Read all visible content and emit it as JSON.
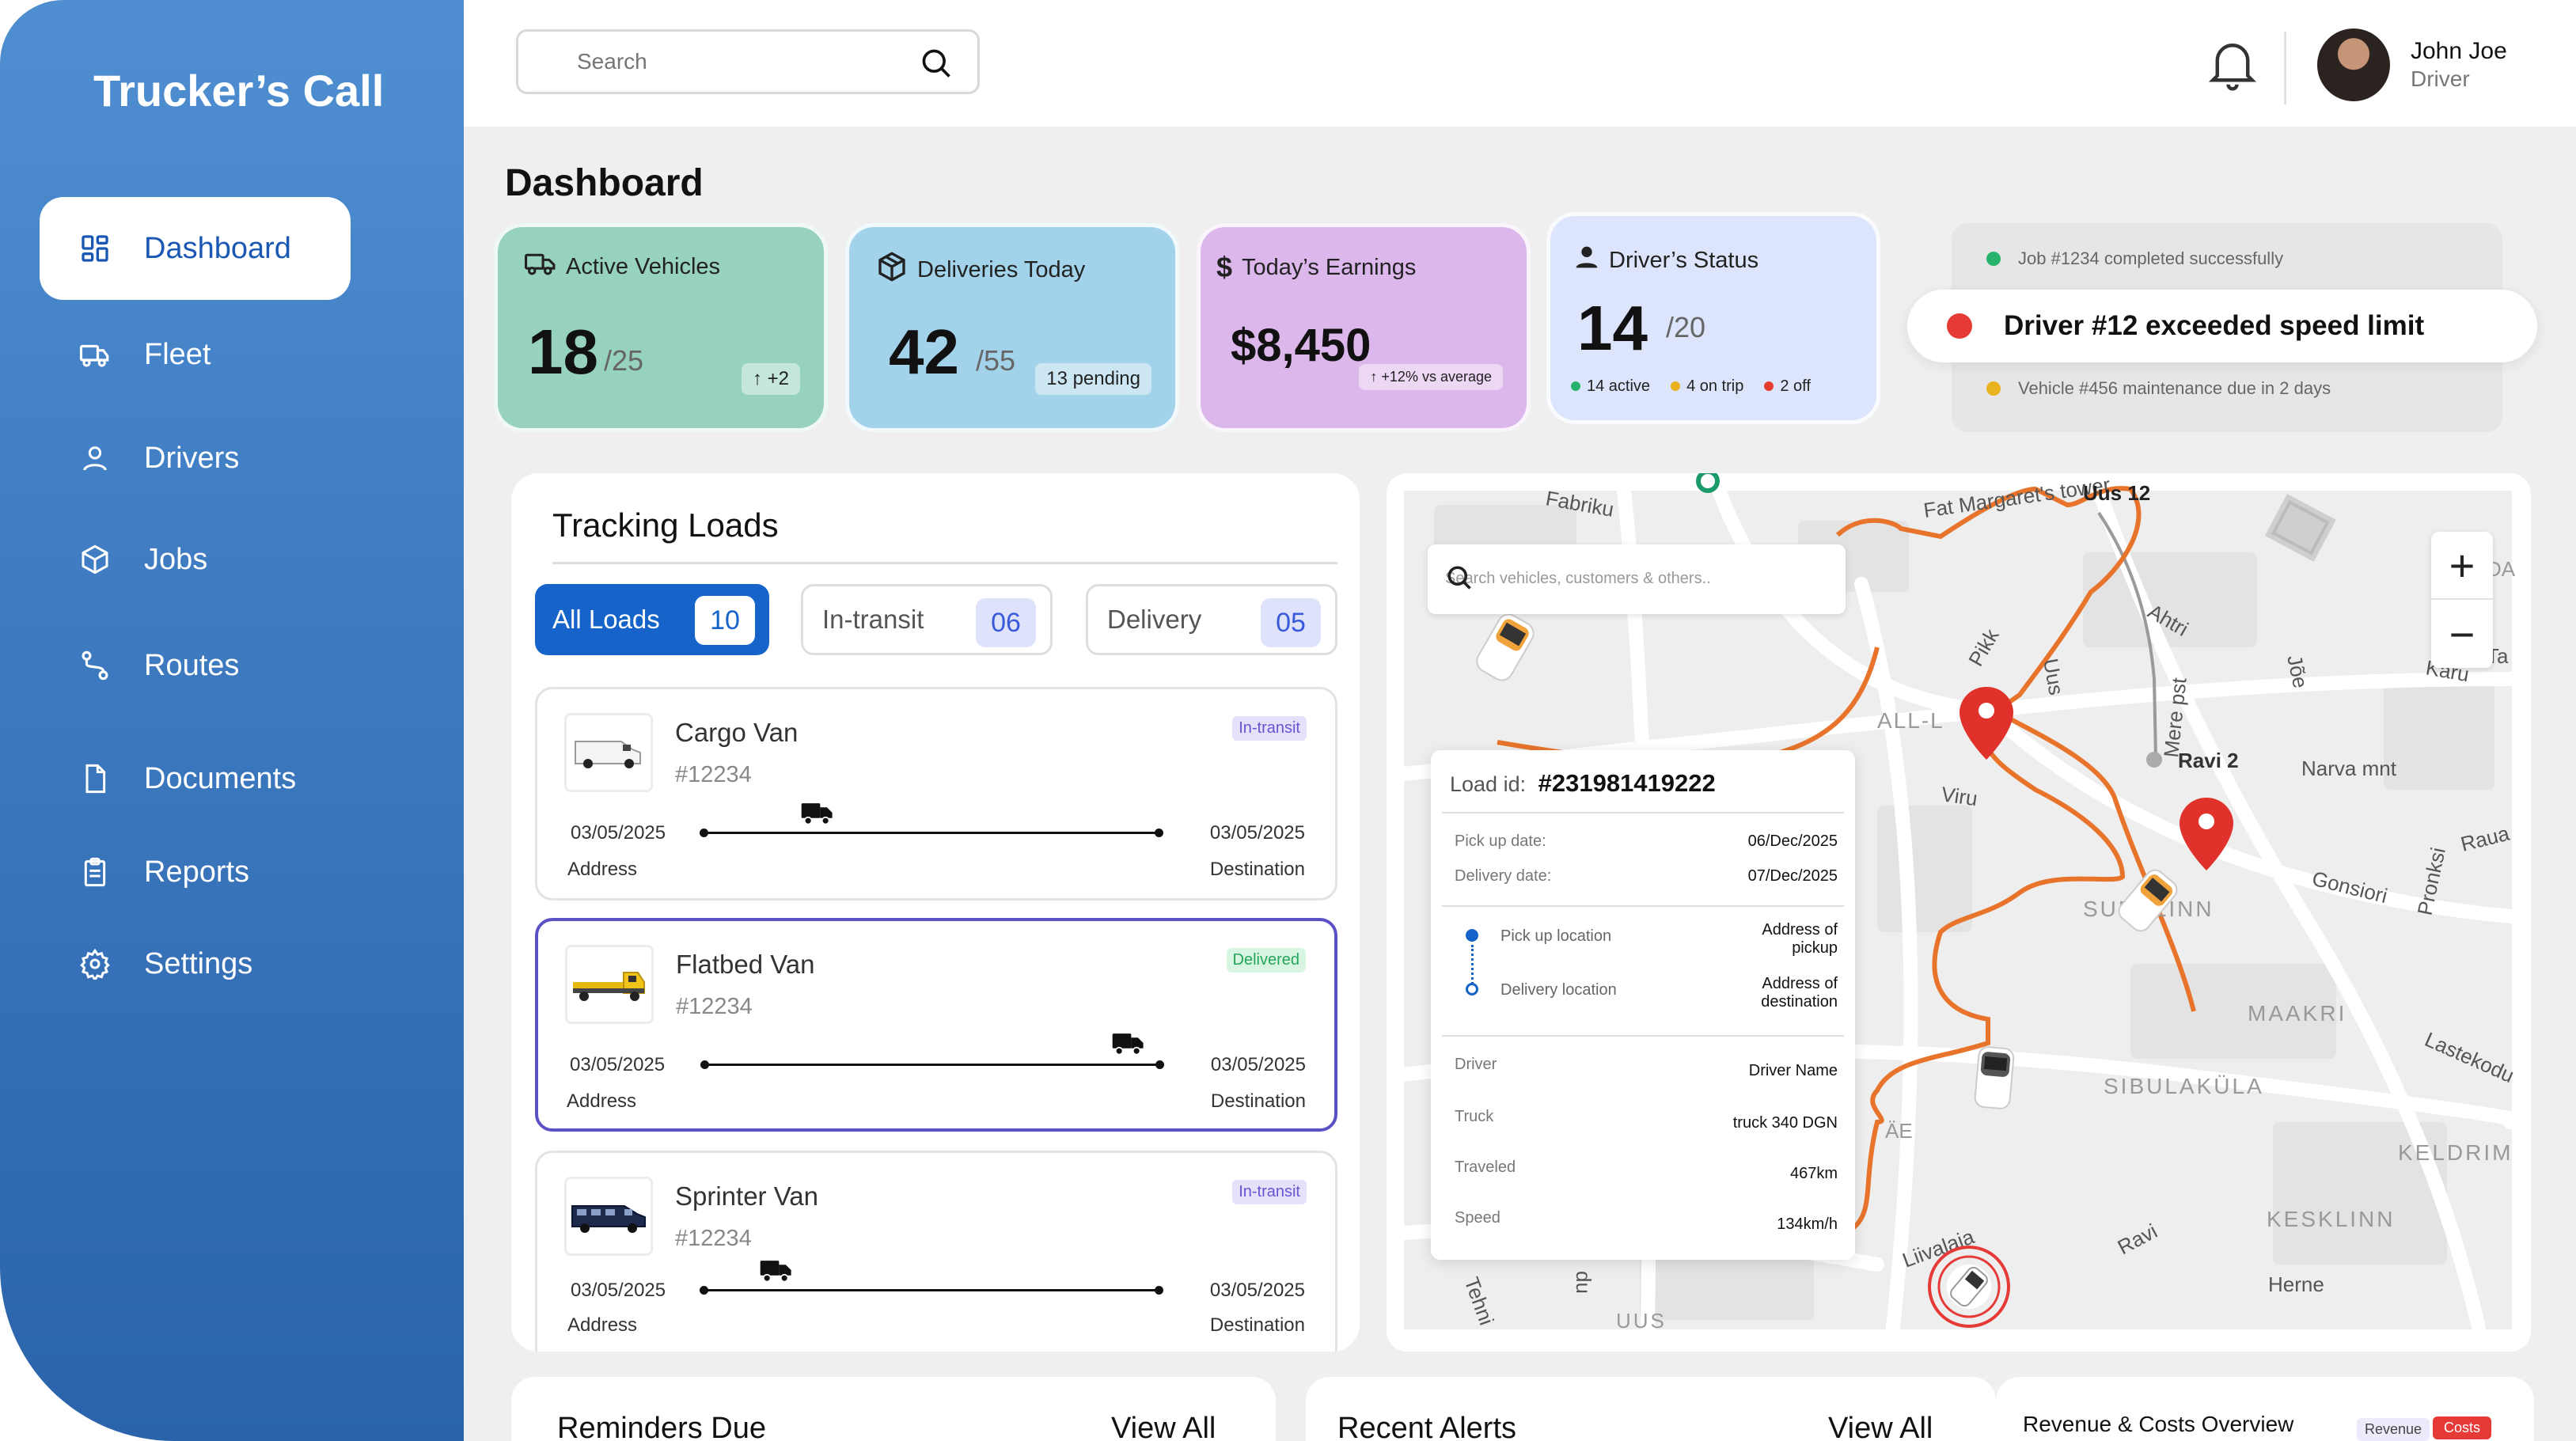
{
  "app": {
    "brand": "Trucker’s Call"
  },
  "sidebar": {
    "items": [
      {
        "label": "Dashboard",
        "icon": "grid-icon"
      },
      {
        "label": "Fleet",
        "icon": "truck-icon"
      },
      {
        "label": "Drivers",
        "icon": "user-icon"
      },
      {
        "label": "Jobs",
        "icon": "box-icon"
      },
      {
        "label": "Routes",
        "icon": "route-icon"
      },
      {
        "label": "Documents",
        "icon": "document-icon"
      },
      {
        "label": "Reports",
        "icon": "clipboard-icon"
      },
      {
        "label": "Settings",
        "icon": "gear-icon"
      }
    ]
  },
  "search": {
    "placeholder": "Search"
  },
  "user": {
    "name": "John Joe",
    "role": "Driver"
  },
  "page": {
    "title": "Dashboard"
  },
  "stats": {
    "vehicles": {
      "label": "Active Vehicles",
      "value": "18",
      "total": "/25",
      "chip": "+2"
    },
    "deliveries": {
      "label": "Deliveries Today",
      "value": "42",
      "total": "/55",
      "chip": "13 pending"
    },
    "earnings": {
      "label": "Today’s Earnings",
      "value": "$8,450",
      "chip": "+12% vs average"
    },
    "drivers": {
      "label": "Driver’s Status",
      "value": "14",
      "total": "/20",
      "active": "14 active",
      "on_trip": "4 on trip",
      "off": "2 off"
    }
  },
  "notifications": {
    "top": "Job #1234 completed successfully",
    "main": "Driver #12 exceeded speed limit",
    "bottom": "Vehicle #456 maintenance due in 2 days"
  },
  "tracking": {
    "title": "Tracking Loads",
    "tabs": [
      {
        "label": "All Loads",
        "count": "10"
      },
      {
        "label": "In-transit",
        "count": "06"
      },
      {
        "label": "Delivery",
        "count": "05"
      }
    ],
    "loads": [
      {
        "name": "Cargo Van",
        "id": "#12234",
        "status": "In-transit",
        "start_date": "03/05/2025",
        "end_date": "03/05/2025",
        "start_label": "Address",
        "end_label": "Destination",
        "progress": 0.25
      },
      {
        "name": "Flatbed Van",
        "id": "#12234",
        "status": "Delivered",
        "start_date": "03/05/2025",
        "end_date": "03/05/2025",
        "start_label": "Address",
        "end_label": "Destination",
        "progress": 0.93
      },
      {
        "name": "Sprinter Van",
        "id": "#12234",
        "status": "In-transit",
        "start_date": "03/05/2025",
        "end_date": "03/05/2025",
        "start_label": "Address",
        "end_label": "Destination",
        "progress": 0.16
      }
    ]
  },
  "map": {
    "search_placeholder": "Search vehicles, customers & others..",
    "labels": {
      "fat": "Fat Margaret's tower",
      "uus12": "Uus 12",
      "ahtri": "Ahtri",
      "pikk": "Pikk",
      "uus": "Uus",
      "mere": "Mere pst",
      "all": "ALL-L",
      "ravi2": "Ravi 2",
      "narva": "Narva mnt",
      "viru": "Viru",
      "sudalinn": "SUDALINN",
      "gonsiori": "Gonsiori",
      "raua": "Raua",
      "maakri": "MAAKRI",
      "lastekodu": "Lastekodu",
      "sibulakula": "SIBULAKÜLA",
      "keldrim": "KELDRIM",
      "kesklinn": "KESKLINN",
      "herne": "Herne",
      "ravi": "Ravi",
      "liivalaia": "Liivalaia",
      "tehni": "Tehni",
      "uus2": "UUS",
      "karu": "Karu",
      "joe": "Jõe",
      "pronksi": "Pronksi",
      "rikq": "Fabriku",
      "da": "DA",
      "ta": "Ta",
      "ae": "ÄE",
      "du": "du"
    },
    "load": {
      "title_label": "Load id:",
      "title_value": "#231981419222",
      "pickup_date_label": "Pick up date:",
      "pickup_date": "06/Dec/2025",
      "delivery_date_label": "Delivery date:",
      "delivery_date": "07/Dec/2025",
      "pickup_loc_label": "Pick up location",
      "pickup_loc": "Address of pickup",
      "delivery_loc_label": "Delivery location",
      "delivery_loc": "Address of destination",
      "driver_label": "Driver",
      "driver": "Driver Name",
      "truck_label": "Truck",
      "truck": "truck 340 DGN",
      "traveled_label": "Traveled",
      "traveled": "467km",
      "speed_label": "Speed",
      "speed": "134km/h"
    }
  },
  "bottom": {
    "reminders": {
      "title": "Reminders Due",
      "view_all": "View All"
    },
    "alerts": {
      "title": "Recent Alerts",
      "view_all": "View All"
    },
    "revenue": {
      "title": "Revenue & Costs Overview",
      "legend_revenue": "Revenue",
      "legend_costs": "Costs"
    }
  },
  "colors": {
    "sidebar": "#3f7cc2",
    "accent": "#1b58b4",
    "card_green": "#96d2bd",
    "card_blue": "#a2d3ea",
    "card_purple": "#dcb7ec",
    "card_lavender": "#dde5fd",
    "route": "#e8742c",
    "pin": "#e0312b"
  }
}
